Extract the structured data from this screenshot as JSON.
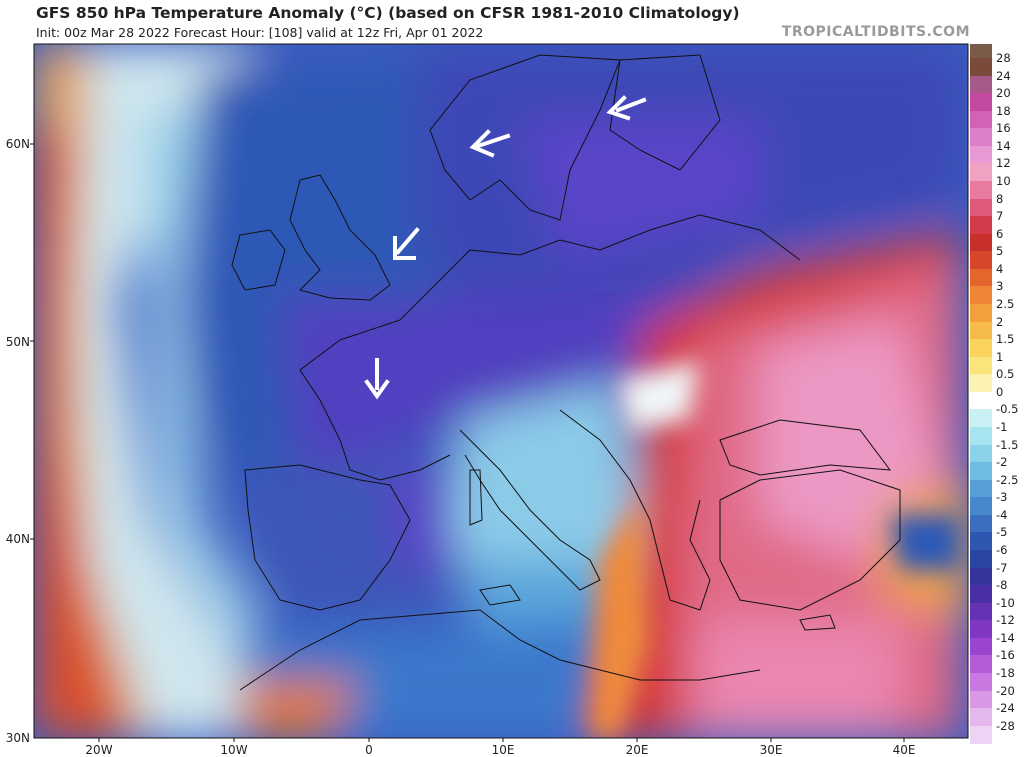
{
  "header": {
    "title": "GFS 850 hPa Temperature Anomaly (°C) (based on CFSR 1981-2010 Climatology)",
    "subtitle": "Init: 00z Mar 28 2022   Forecast Hour: [108]   valid at 12z Fri, Apr 01 2022",
    "brand": "TROPICALTIDBITS.COM"
  },
  "map": {
    "lat_labels": [
      "60N",
      "50N",
      "40N",
      "30N"
    ],
    "lon_labels": [
      "20W",
      "10W",
      "0",
      "10E",
      "20E",
      "30E",
      "40E"
    ],
    "arrows_icon": "wind-direction-arrow-icon"
  },
  "colorbar": {
    "labels": [
      "28",
      "24",
      "20",
      "18",
      "16",
      "14",
      "12",
      "10",
      "8",
      "7",
      "6",
      "5",
      "4",
      "3",
      "2.5",
      "2",
      "1.5",
      "1",
      "0.5",
      "0",
      "-0.5",
      "-1",
      "-1.5",
      "-2",
      "-2.5",
      "-3",
      "-4",
      "-5",
      "-6",
      "-7",
      "-8",
      "-10",
      "-12",
      "-14",
      "-16",
      "-18",
      "-20",
      "-24",
      "-28"
    ],
    "colors": [
      "#7a4a3a",
      "#a65a8a",
      "#c34aa0",
      "#d163b6",
      "#dd7fc8",
      "#e89ad4",
      "#f0a2c2",
      "#e97aa0",
      "#df5a7a",
      "#d23c4a",
      "#c8302c",
      "#d8462a",
      "#e5662c",
      "#ee8636",
      "#f2a03e",
      "#f6bb4a",
      "#f9d35c",
      "#fbe57a",
      "#fdf3b0",
      "#ffffff",
      "#c9f1f4",
      "#a7e4ef",
      "#8bd3ea",
      "#6fbce2",
      "#569fd6",
      "#4788cc",
      "#3c6ec0",
      "#2f56b0",
      "#2a46a2",
      "#34349c",
      "#4a2ea6",
      "#6432b4",
      "#8038c4",
      "#9a44d0",
      "#b45cd8",
      "#c878e0",
      "#d898e6",
      "#e4b8ee",
      "#eed4f4"
    ]
  }
}
